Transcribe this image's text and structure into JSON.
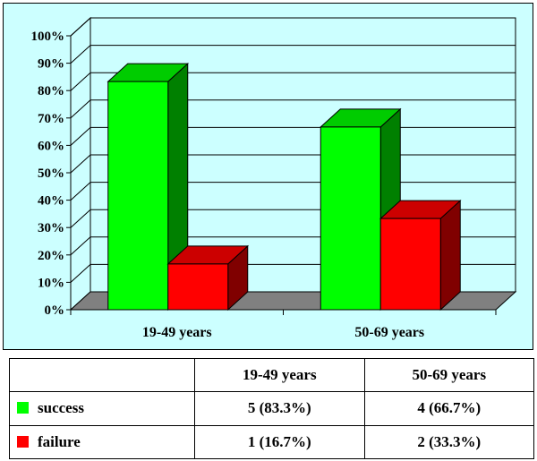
{
  "chart_data": {
    "type": "bar",
    "categories": [
      "19-49 years",
      "50-69 years"
    ],
    "series": [
      {
        "name": "success",
        "values": [
          83.3,
          66.7
        ],
        "color": "#00ff00",
        "side_color": "#008000",
        "top_color": "#00cc00"
      },
      {
        "name": "failure",
        "values": [
          16.7,
          33.3
        ],
        "color": "#ff0000",
        "side_color": "#800000",
        "top_color": "#cc0000"
      }
    ],
    "ylim": [
      0,
      100
    ],
    "yticks": [
      "0%",
      "10%",
      "20%",
      "30%",
      "40%",
      "50%",
      "60%",
      "70%",
      "80%",
      "90%",
      "100%"
    ],
    "grid": true,
    "floor_color": "#808080"
  },
  "table": {
    "headers": [
      "",
      "19-49 years",
      "50-69 years"
    ],
    "rows": [
      {
        "label": "success",
        "color": "#00ff00",
        "cells": [
          "5 (83.3%)",
          "4 (66.7%)"
        ]
      },
      {
        "label": "failure",
        "color": "#ff0000",
        "cells": [
          "1 (16.7%)",
          "2 (33.3%)"
        ]
      }
    ]
  }
}
